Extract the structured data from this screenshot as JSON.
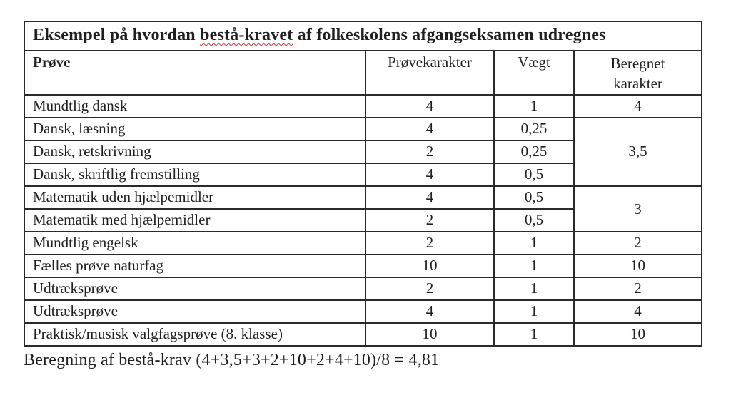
{
  "table": {
    "title": {
      "before": "Eksempel på hvordan ",
      "spellcheck_word": "bestå-kravet",
      "after": " af folkeskolens afgangseksamen udregnes"
    },
    "headers": {
      "prove": "Prøve",
      "provekarakter": "Prøvekarakter",
      "vaegt": "Vægt",
      "beregnet": "Beregnet karakter"
    },
    "rows": [
      {
        "prove": "Mundtlig dansk",
        "karakter": "4",
        "vaegt": "1",
        "beregnet": "4"
      },
      {
        "prove": "Dansk, læsning",
        "karakter": "4",
        "vaegt": "0,25",
        "beregnet": "3,5"
      },
      {
        "prove": "Dansk, retskrivning",
        "karakter": "2",
        "vaegt": "0,25"
      },
      {
        "prove": "Dansk, skriftlig fremstilling",
        "karakter": "4",
        "vaegt": "0,5"
      },
      {
        "prove": "Matematik uden hjælpemidler",
        "karakter": "4",
        "vaegt": "0,5",
        "beregnet": "3"
      },
      {
        "prove": "Matematik med hjælpemidler",
        "karakter": "2",
        "vaegt": "0,5"
      },
      {
        "prove": "Mundtlig engelsk",
        "karakter": "2",
        "vaegt": "1",
        "beregnet": "2"
      },
      {
        "prove": "Fælles prøve naturfag",
        "karakter": "10",
        "vaegt": "1",
        "beregnet": "10"
      },
      {
        "prove": "Udtræksprøve",
        "karakter": "2",
        "vaegt": "1",
        "beregnet": "2"
      },
      {
        "prove": "Udtræksprøve",
        "karakter": "4",
        "vaegt": "1",
        "beregnet": "4"
      },
      {
        "prove": "Praktisk/musisk valgfagsprøve (8. klasse)",
        "karakter": "10",
        "vaegt": "1",
        "beregnet": "10"
      }
    ]
  },
  "footer": {
    "calculation": "Beregning af bestå-krav (4+3,5+3+2+10+2+4+10)/8 = 4,81"
  },
  "colors": {
    "text": "#1f1f1f",
    "border": "#2a2a2a",
    "spellcheck_underline": "#c43b3b"
  }
}
